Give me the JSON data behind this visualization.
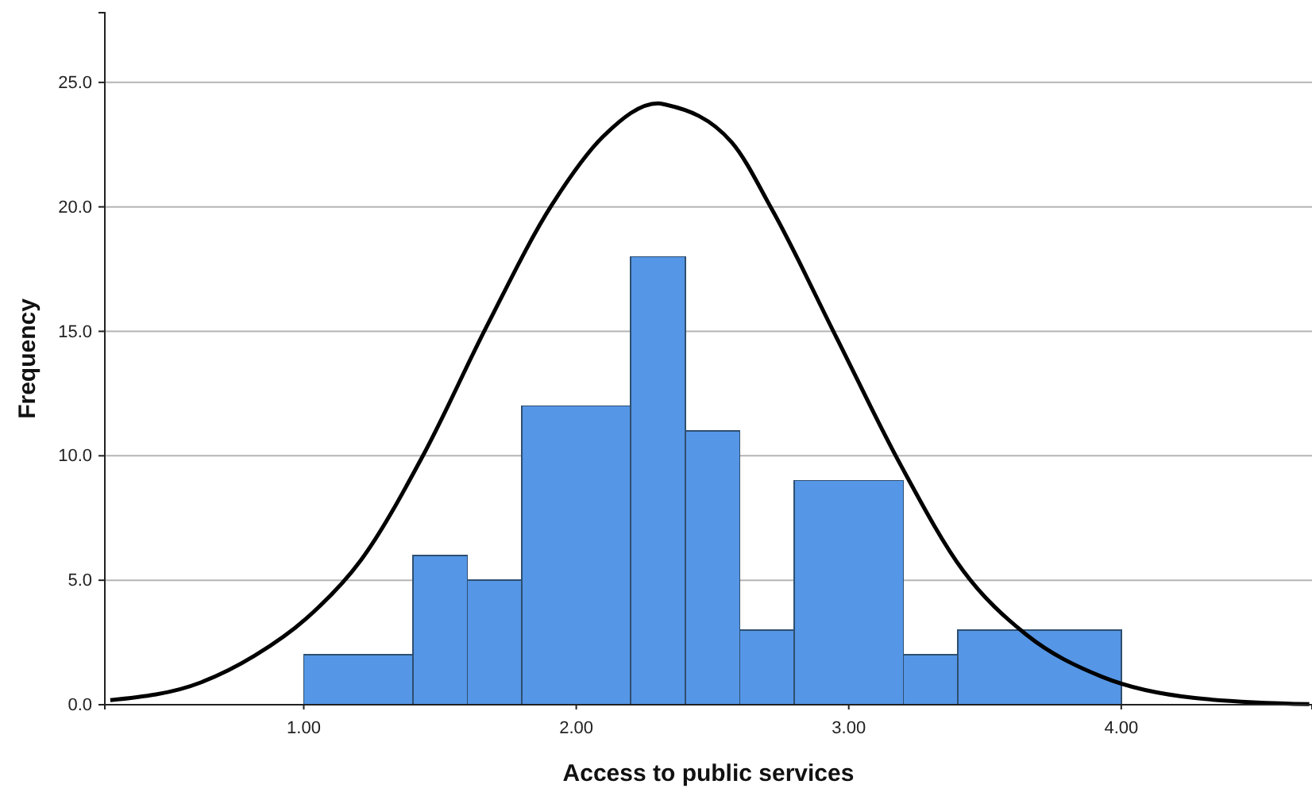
{
  "chart_data": {
    "type": "histogram",
    "xlabel": "Access to public services",
    "ylabel": "Frequency",
    "xlim": [
      0.27,
      4.7
    ],
    "ylim": [
      0,
      27.8
    ],
    "xticks": [
      {
        "value": 1,
        "label": "1.00"
      },
      {
        "value": 2,
        "label": "2.00"
      },
      {
        "value": 3,
        "label": "3.00"
      },
      {
        "value": 4,
        "label": "4.00"
      }
    ],
    "yticks": [
      {
        "value": 0,
        "label": "0.0"
      },
      {
        "value": 5,
        "label": "5.0"
      },
      {
        "value": 10,
        "label": "10.0"
      },
      {
        "value": 15,
        "label": "15.0"
      },
      {
        "value": 20,
        "label": "20.0"
      },
      {
        "value": 25,
        "label": "25.0"
      }
    ],
    "grid": "y",
    "series": [
      {
        "type": "histogram",
        "color": "#5596e6",
        "bins": [
          1.0,
          1.4,
          1.6,
          1.8,
          2.2,
          2.4,
          2.6,
          2.8,
          3.2,
          3.4,
          4.0
        ],
        "values": [
          2,
          6,
          5,
          12,
          18,
          11,
          3,
          9,
          2,
          3
        ]
      },
      {
        "type": "line",
        "color": "#000000",
        "x": [
          0.29,
          0.626,
          0.82,
          1.01,
          1.21,
          1.44,
          1.67,
          1.91,
          2.1,
          2.3,
          2.33,
          2.57,
          2.72,
          2.955,
          3.19,
          3.42,
          3.65,
          3.93,
          4.27,
          4.69
        ],
        "values": [
          0.18,
          0.91,
          1.97,
          3.47,
          5.81,
          10.06,
          15.17,
          20.07,
          22.84,
          24.16,
          24.1,
          22.6,
          19.86,
          14.75,
          9.64,
          5.38,
          2.83,
          1.12,
          0.27,
          0.02
        ]
      }
    ]
  }
}
